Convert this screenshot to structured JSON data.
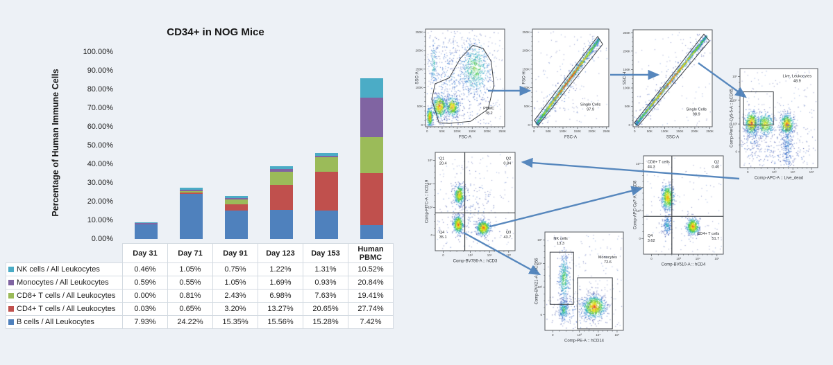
{
  "bar_chart": {
    "title": "CD34+ in NOG Mice",
    "y_axis_label": "Percentage of Human Immune Cells"
  },
  "chart_data": {
    "type": "bar",
    "stacked": true,
    "title": "CD34+ in NOG Mice",
    "ylabel": "Percentage of Human Immune Cells",
    "ylim": [
      0,
      100
    ],
    "grid": false,
    "y_tick_labels": [
      "0.00%",
      "10.00%",
      "20.00%",
      "30.00%",
      "40.00%",
      "50.00%",
      "60.00%",
      "70.00%",
      "80.00%",
      "90.00%",
      "100.00%"
    ],
    "categories": [
      "Day 31",
      "Day 71",
      "Day 91",
      "Day 123",
      "Day 153",
      "Human PBMC"
    ],
    "series": [
      {
        "name": "NK cells / All Leukocytes",
        "color": "#4BACC6",
        "values": [
          0.46,
          1.05,
          0.75,
          1.22,
          1.31,
          10.52
        ]
      },
      {
        "name": "Monocytes / All Leukocytes",
        "color": "#8064A2",
        "values": [
          0.59,
          0.55,
          1.05,
          1.69,
          0.93,
          20.84
        ]
      },
      {
        "name": "CD8+ T cells / All Leukocytes",
        "color": "#9BBB59",
        "values": [
          0.0,
          0.81,
          2.43,
          6.98,
          7.63,
          19.41
        ]
      },
      {
        "name": "CD4+ T cells / All Leukocytes",
        "color": "#C0504D",
        "values": [
          0.03,
          0.65,
          3.2,
          13.27,
          20.65,
          27.74
        ]
      },
      {
        "name": "B cells / All Leukocytes",
        "color": "#4F81BD",
        "values": [
          7.93,
          24.22,
          15.35,
          15.56,
          15.28,
          7.42
        ]
      }
    ],
    "stack_order_bottom_to_top": [
      "B cells / All Leukocytes",
      "CD4+ T cells / All Leukocytes",
      "CD8+ T cells / All Leukocytes",
      "Monocytes / All Leukocytes",
      "NK cells / All Leukocytes"
    ],
    "legend_position": "table-left-column"
  },
  "table": {
    "columns": [
      "Day 31",
      "Day 71",
      "Day 91",
      "Day 123",
      "Day 153",
      "Human PBMC"
    ],
    "rows": [
      {
        "label": "NK cells / All Leukocytes",
        "swatch": "#4BACC6",
        "values": [
          "0.46%",
          "1.05%",
          "0.75%",
          "1.22%",
          "1.31%",
          "10.52%"
        ]
      },
      {
        "label": "Monocytes / All Leukocytes",
        "swatch": "#8064A2",
        "values": [
          "0.59%",
          "0.55%",
          "1.05%",
          "1.69%",
          "0.93%",
          "20.84%"
        ]
      },
      {
        "label": "CD8+ T cells / All Leukocytes",
        "swatch": "#9BBB59",
        "values": [
          "0.00%",
          "0.81%",
          "2.43%",
          "6.98%",
          "7.63%",
          "19.41%"
        ]
      },
      {
        "label": "CD4+ T cells / All Leukocytes",
        "swatch": "#C0504D",
        "values": [
          "0.03%",
          "0.65%",
          "3.20%",
          "13.27%",
          "20.65%",
          "27.74%"
        ]
      },
      {
        "label": "B cells / All Leukocytes",
        "swatch": "#4F81BD",
        "values": [
          "7.93%",
          "24.22%",
          "15.35%",
          "15.56%",
          "15.28%",
          "7.42%"
        ]
      }
    ]
  },
  "flow_panel": {
    "tick_labels": {
      "linear_x": [
        "0",
        "50K",
        "100K",
        "150K",
        "200K",
        "250K"
      ],
      "linear_y": [
        "250K",
        "200K",
        "150K",
        "100K",
        "50K",
        "0"
      ],
      "log_x": [
        "0",
        "10³",
        "10⁴",
        "10⁵"
      ],
      "log_y": [
        "10⁵",
        "10⁴",
        "10³",
        "0"
      ]
    },
    "plots": [
      {
        "name": "pbmc-gate",
        "xlabel": "FSC-A",
        "ylabel": "SSC-A",
        "labels": [
          {
            "text": "PBMC",
            "value": "78.2"
          }
        ]
      },
      {
        "name": "singlets-fsc",
        "xlabel": "FSC-A",
        "ylabel": "FSC-H",
        "labels": [
          {
            "text": "Single Cells",
            "value": "97.9"
          }
        ]
      },
      {
        "name": "singlets-ssc",
        "xlabel": "SSC-A",
        "ylabel": "SSC-H",
        "labels": [
          {
            "text": "Single Cells",
            "value": "98.9"
          }
        ]
      },
      {
        "name": "live-leukocytes",
        "xlabel": "Comp-APC-A :: Live_dead",
        "ylabel": "Comp-PerCP-Cy5-5-A :: hCD45",
        "labels": [
          {
            "text": "Live, Leukocytes",
            "value": "48.9"
          }
        ]
      },
      {
        "name": "cd19-vs-cd3",
        "xlabel": "Comp-BV786-A :: hCD3",
        "ylabel": "Comp-FITC-A :: hCD19",
        "labels": [
          {
            "text": "Q1",
            "value": "20.4"
          },
          {
            "text": "Q2",
            "value": "0.84"
          },
          {
            "text": "Q3",
            "value": "43.7"
          },
          {
            "text": "Q4",
            "value": "35.1"
          }
        ]
      },
      {
        "name": "cd8-vs-cd4",
        "xlabel": "Comp-BV510-A :: hCD4",
        "ylabel": "Comp-APC-Cy7-A :: hCD8",
        "labels": [
          {
            "text": "CD8+ T cells",
            "value": "44.3"
          },
          {
            "text": "Q2",
            "value": "0.40"
          },
          {
            "text": "CD4+ T cells",
            "value": "51.7"
          },
          {
            "text": "Q4",
            "value": "3.62"
          }
        ]
      },
      {
        "name": "nk-monocytes",
        "xlabel": "Comp-PE-A :: hCD14",
        "ylabel": "Comp-BV421-A :: hCD56",
        "labels": [
          {
            "text": "NK cells",
            "value": "13.3"
          },
          {
            "text": "Monocytes",
            "value": "72.6"
          }
        ]
      }
    ]
  }
}
